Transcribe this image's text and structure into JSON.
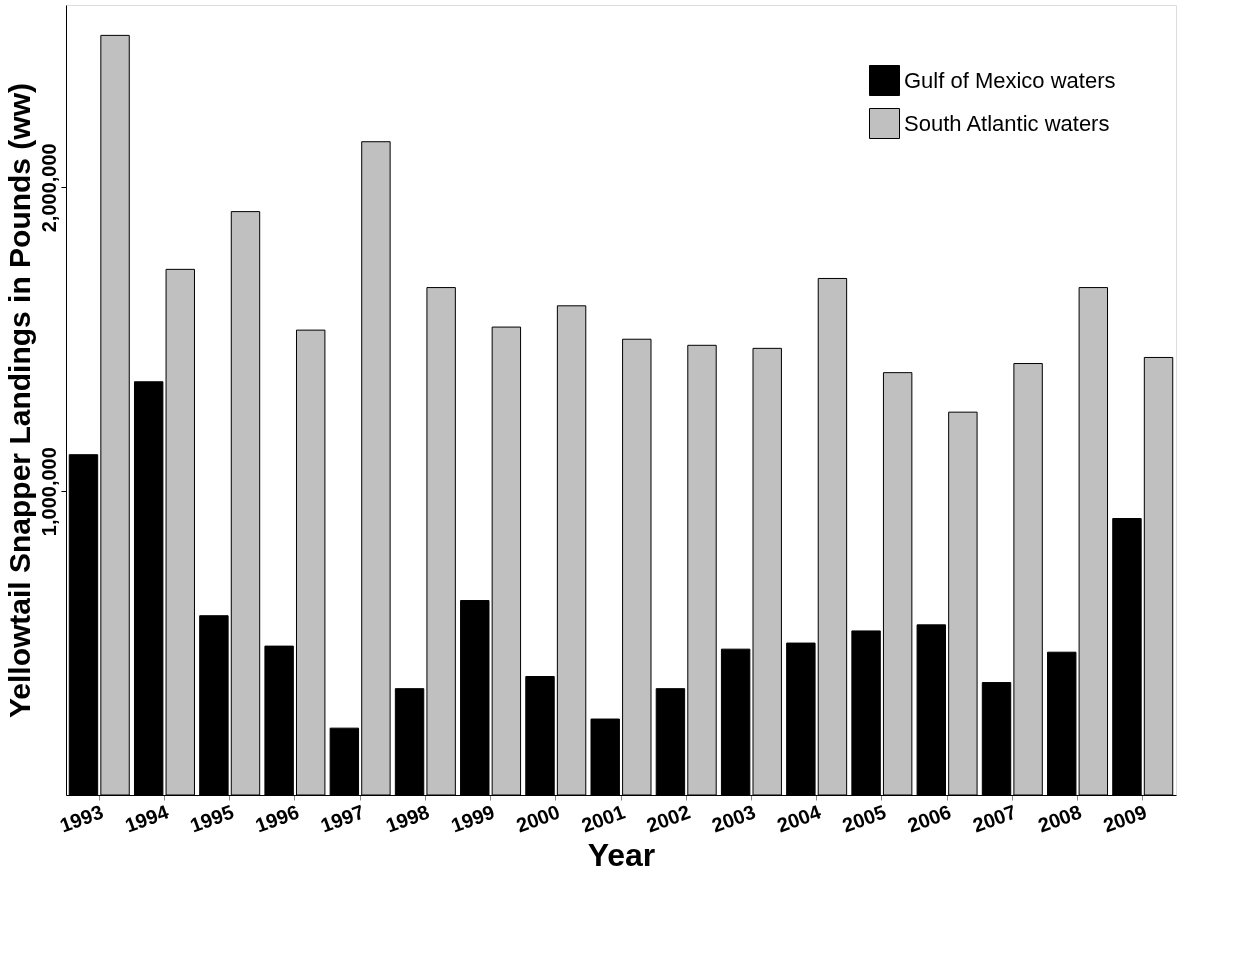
{
  "chart_data": {
    "type": "bar",
    "xlabel": "Year",
    "ylabel": "Yellowtail Snapper Landings in Pounds (ww)",
    "categories": [
      "1993",
      "1994",
      "1995",
      "1996",
      "1997",
      "1998",
      "1999",
      "2000",
      "2001",
      "2002",
      "2003",
      "2004",
      "2005",
      "2006",
      "2007",
      "2008",
      "2009"
    ],
    "series": [
      {
        "name": "Gulf of Mexico waters",
        "color": "#000000",
        "values": [
          1120000,
          1360000,
          590000,
          490000,
          220000,
          350000,
          640000,
          390000,
          250000,
          350000,
          480000,
          500000,
          540000,
          560000,
          370000,
          470000,
          910000
        ]
      },
      {
        "name": "South Atlantic waters",
        "color": "#c0c0c0",
        "values": [
          2500000,
          1730000,
          1920000,
          1530000,
          2150000,
          1670000,
          1540000,
          1610000,
          1500000,
          1480000,
          1470000,
          1700000,
          1390000,
          1260000,
          1420000,
          1670000,
          1440000
        ]
      }
    ],
    "ylim": [
      0,
      2600000
    ],
    "yticks": [
      {
        "value": 1000000,
        "label": "1,000,000"
      },
      {
        "value": 2000000,
        "label": "2,000,000"
      }
    ],
    "grid": false,
    "legend": "top right"
  }
}
